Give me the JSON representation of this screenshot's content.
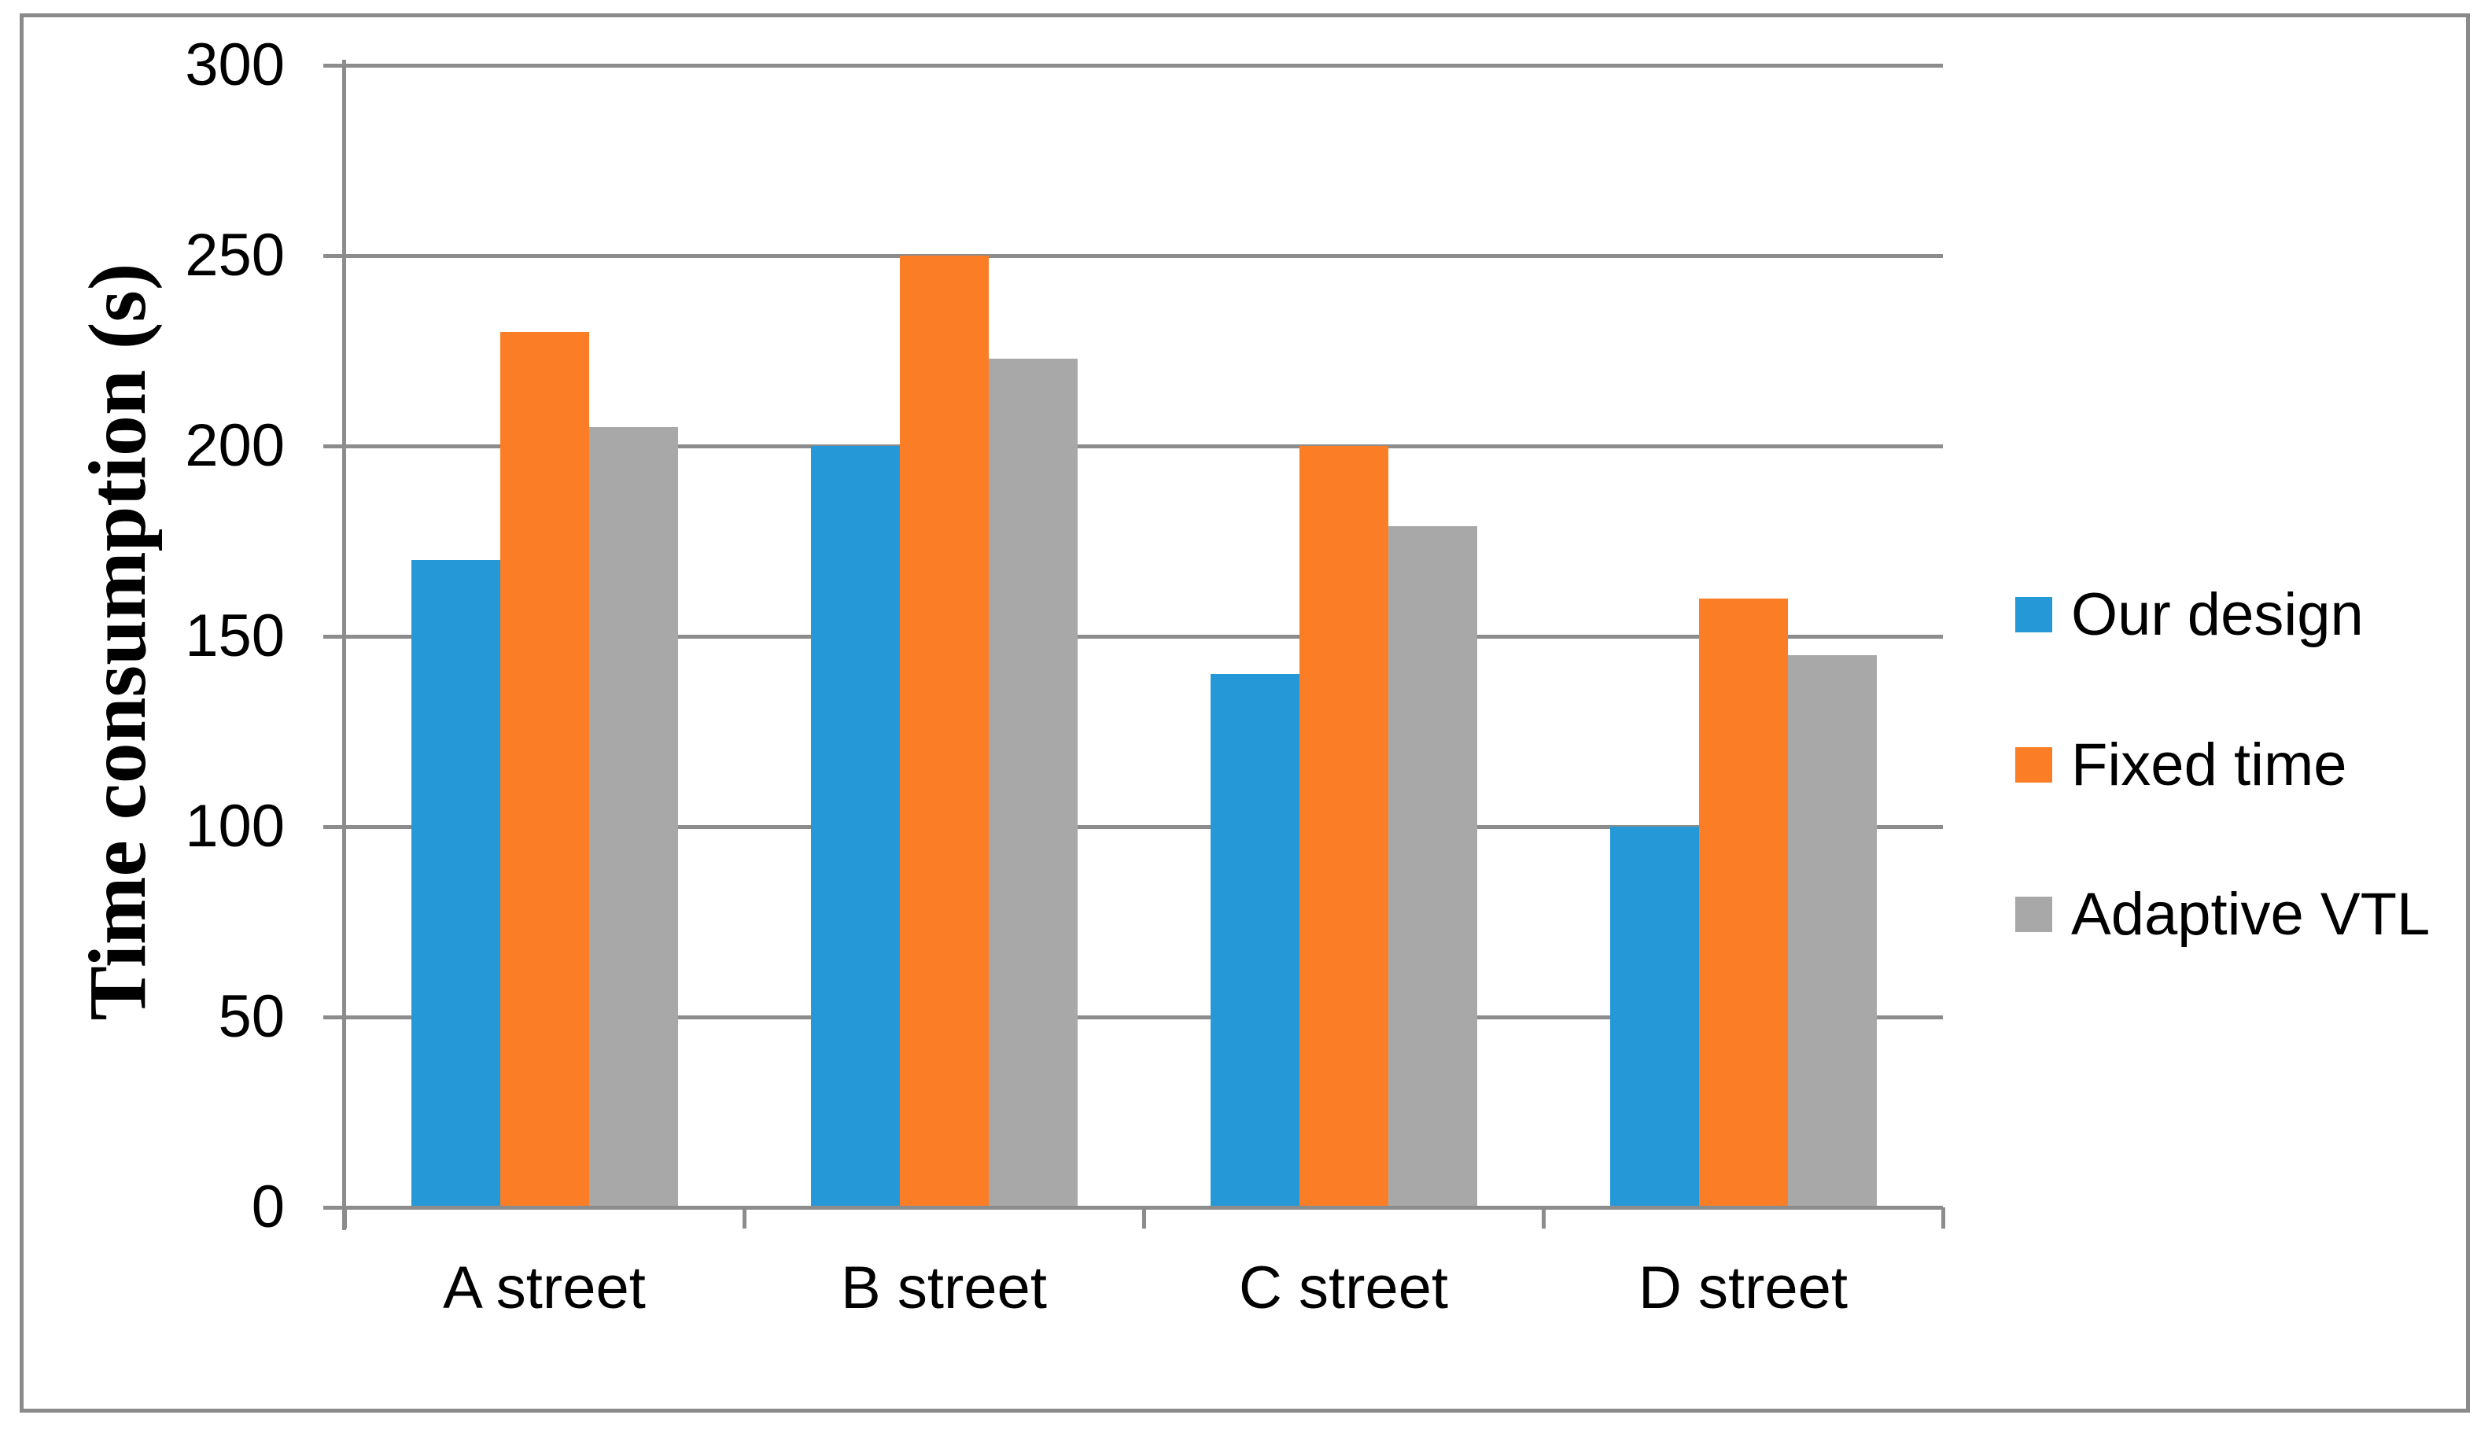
{
  "chart_data": {
    "type": "bar",
    "categories": [
      "A street",
      "B street",
      "C street",
      "D street"
    ],
    "series": [
      {
        "name": "Our design",
        "color": "#2599D8",
        "values": [
          170,
          200,
          140,
          100
        ]
      },
      {
        "name": "Fixed time",
        "color": "#FB7E26",
        "values": [
          230,
          250,
          200,
          160
        ]
      },
      {
        "name": "Adaptive VTL",
        "color": "#A8A8A8",
        "values": [
          205,
          223,
          179,
          145
        ]
      }
    ],
    "ylabel": "Time consumption (s)",
    "ylim": [
      0,
      300
    ],
    "y_ticks": [
      0,
      50,
      100,
      150,
      200,
      250,
      300
    ],
    "grid": true,
    "legend_position": "right",
    "gridline_color": "#8C8C8C",
    "axis_color": "#8C8C8C",
    "frame_color": "#8A8A8A",
    "text_color": "#000000"
  }
}
